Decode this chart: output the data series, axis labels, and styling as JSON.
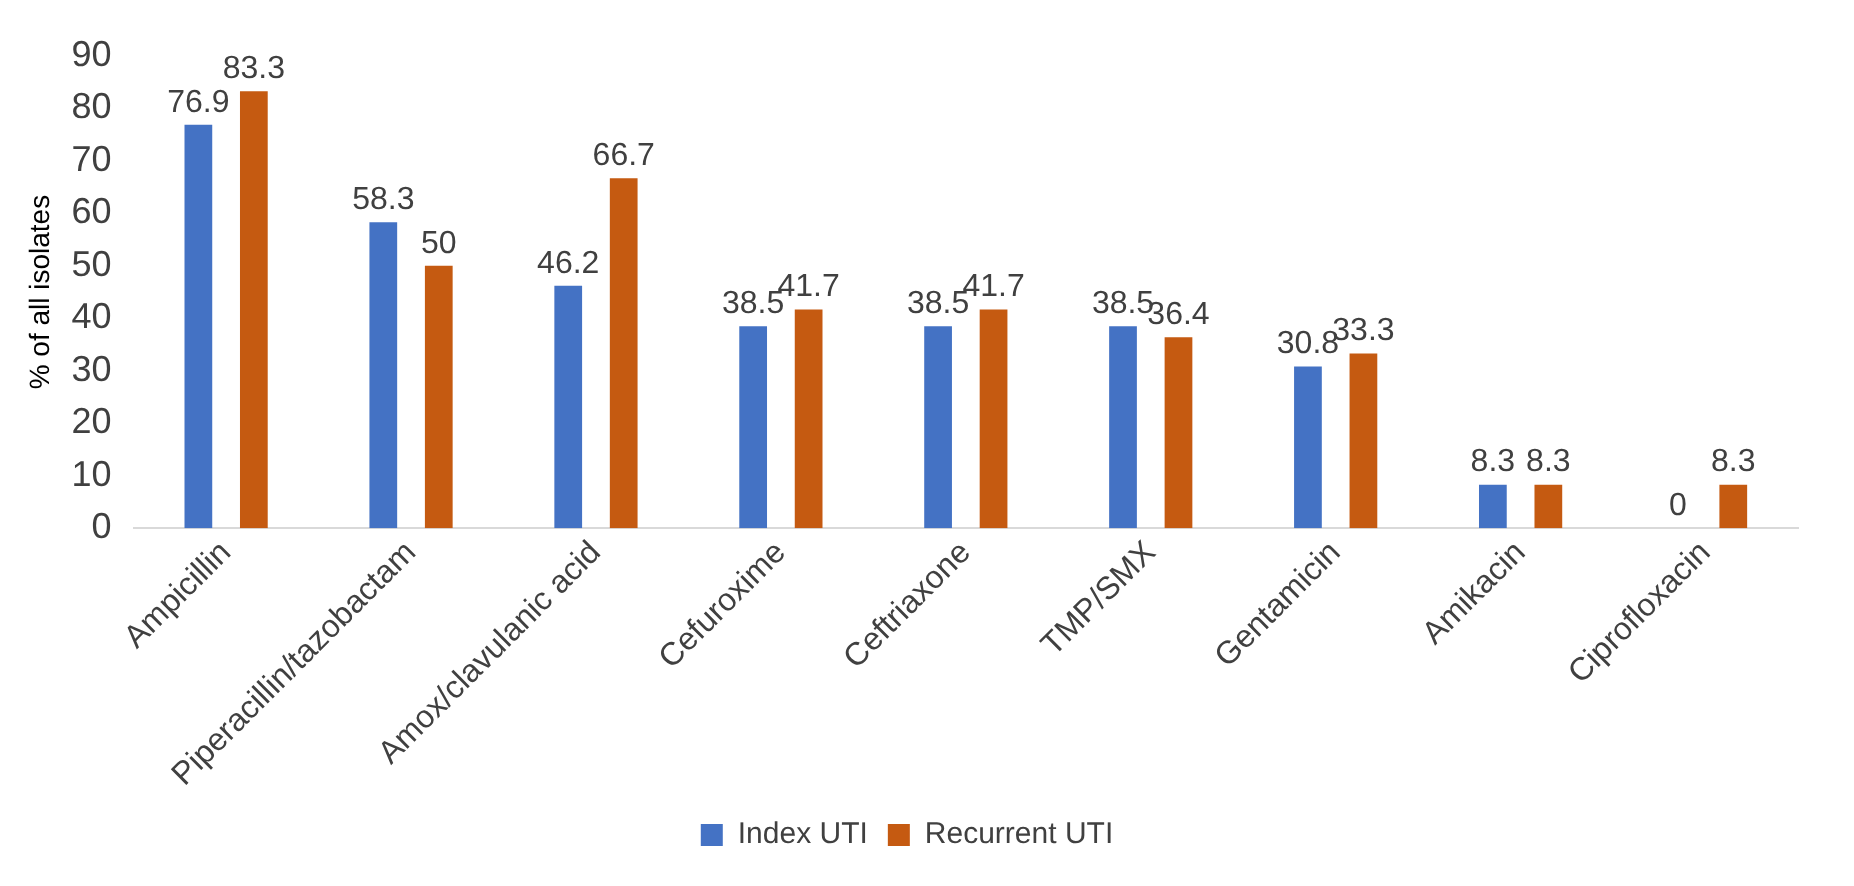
{
  "chart_data": {
    "type": "bar",
    "ylabel": "% of all isolates",
    "categories": [
      "Ampicillin",
      "Piperacillin/tazobactam",
      "Amox/clavulanic acid",
      "Cefuroxime",
      "Ceftriaxone",
      "TMP/SMX",
      "Gentamicin",
      "Amikacin",
      "Ciprofloxacin"
    ],
    "series": [
      {
        "name": "Index UTI",
        "color": "#4472c4",
        "values": [
          76.9,
          58.3,
          46.2,
          38.5,
          38.5,
          38.5,
          30.8,
          8.3,
          0
        ]
      },
      {
        "name": "Recurrent UTI",
        "color": "#c55a11",
        "values": [
          83.3,
          50,
          66.7,
          41.7,
          41.7,
          36.4,
          33.3,
          8.3,
          8.3
        ]
      }
    ],
    "ylim": [
      0,
      90
    ],
    "yticks": [
      0,
      10,
      20,
      30,
      40,
      50,
      60,
      70,
      80,
      90
    ],
    "grid": false,
    "legend": "bottom",
    "data_labels": true
  }
}
